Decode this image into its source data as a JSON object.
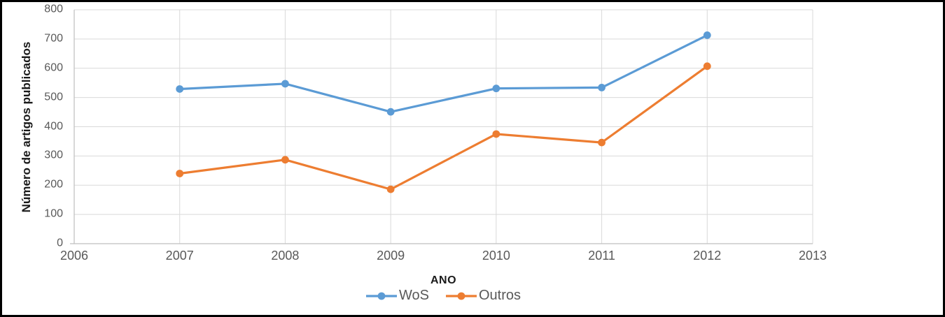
{
  "chart_data": {
    "type": "line",
    "title": "",
    "xlabel": "ANO",
    "ylabel": "Número de artigos publicados",
    "x": [
      2007,
      2008,
      2009,
      2010,
      2011,
      2012
    ],
    "series": [
      {
        "name": "WoS",
        "color": "#5B9BD5",
        "values": [
          529,
          547,
          451,
          531,
          534,
          713
        ]
      },
      {
        "name": "Outros",
        "color": "#ED7D31",
        "values": [
          240,
          287,
          186,
          375,
          346,
          607
        ]
      }
    ],
    "xlim": [
      2006,
      2013
    ],
    "ylim": [
      0,
      800
    ],
    "x_ticks": [
      "2006",
      "2007",
      "2008",
      "2009",
      "2010",
      "2011",
      "2012",
      "2013"
    ],
    "y_ticks": [
      "0",
      "100",
      "200",
      "300",
      "400",
      "500",
      "600",
      "700",
      "800"
    ],
    "grid": true,
    "legend_position": "bottom",
    "marker": "circle"
  },
  "style": {
    "gridline_color": "#d9d9d9",
    "axis_line_color": "#bfbfbf",
    "tick_label_color": "#595959",
    "title_color": "#1a1a1a",
    "background": "#ffffff",
    "border_color": "#000000"
  }
}
